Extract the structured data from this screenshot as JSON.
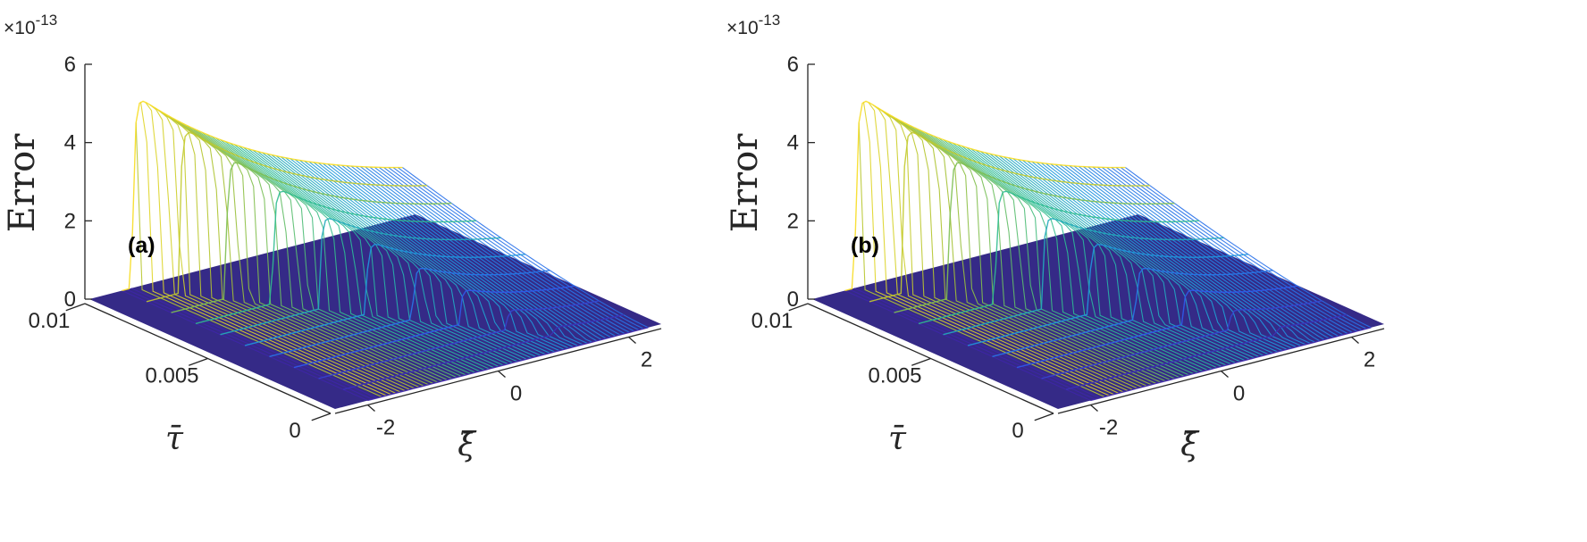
{
  "chart_data": [
    {
      "type": "surface",
      "panel_label": "(a)",
      "z_exponent": "×10-13",
      "zlabel": "Error",
      "xlabel": "ξ̄",
      "ylabel": "τ̄",
      "x_ticks": [
        "-2",
        "0",
        "2"
      ],
      "y_ticks": [
        "0",
        "0.005",
        "0.01"
      ],
      "z_ticks": [
        "0",
        "2",
        "4",
        "6"
      ],
      "xlim": [
        -2.5,
        2.5
      ],
      "ylim": [
        0,
        0.01
      ],
      "zlim": [
        0,
        6
      ],
      "peak_error": 5.0,
      "colormap": [
        "#3e26a8",
        "#2e5ff0",
        "#1e9ddb",
        "#2cbc93",
        "#a9c12f",
        "#f7dd24"
      ],
      "floor_color": "#352a87"
    },
    {
      "type": "surface",
      "panel_label": "(b)",
      "z_exponent": "×10-13",
      "zlabel": "Error",
      "xlabel": "ξ̄",
      "ylabel": "τ̄",
      "x_ticks": [
        "-2",
        "0",
        "2"
      ],
      "y_ticks": [
        "0",
        "0.005",
        "0.01"
      ],
      "z_ticks": [
        "0",
        "2",
        "4",
        "6"
      ],
      "xlim": [
        -2.5,
        2.5
      ],
      "ylim": [
        0,
        0.01
      ],
      "zlim": [
        0,
        6
      ],
      "peak_error": 5.0,
      "colormap": [
        "#3e26a8",
        "#2e5ff0",
        "#1e9ddb",
        "#2cbc93",
        "#a9c12f",
        "#f7dd24"
      ],
      "floor_color": "#352a87"
    }
  ]
}
